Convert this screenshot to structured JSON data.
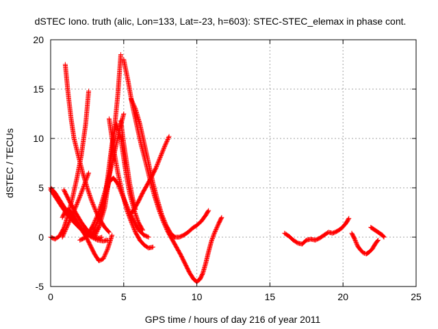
{
  "chart_data": {
    "type": "scatter",
    "title": "dSTEC Iono. truth (alic, Lon=133, Lat=-23, h=603): STEC-STEC_elemax in phase cont.",
    "xlabel": "GPS time / hours of day 216 of year 2011",
    "ylabel": "dSTEC  / TECUs",
    "xlim": [
      0,
      25
    ],
    "ylim": [
      -5,
      20
    ],
    "x_ticks": [
      0,
      5,
      10,
      15,
      20,
      25
    ],
    "y_ticks": [
      -5,
      0,
      5,
      10,
      15,
      20
    ],
    "x_tick_labels": [
      "0",
      "5",
      "10",
      "15",
      "20",
      "25"
    ],
    "y_tick_labels": [
      "-5",
      "0",
      "5",
      "10",
      "15",
      "20"
    ],
    "grid": true,
    "marker": "+",
    "color": "#ff0000",
    "series": [
      {
        "x": [
          0.0,
          0.3,
          0.6,
          0.9,
          1.2,
          1.5,
          1.8,
          2.1,
          2.4,
          2.7,
          3.0,
          3.3,
          3.5
        ],
        "y": [
          5.0,
          4.5,
          3.8,
          3.1,
          2.5,
          1.9,
          1.4,
          0.9,
          0.5,
          0.2,
          0.0,
          -0.1,
          0.0
        ]
      },
      {
        "x": [
          0.0,
          0.4,
          0.8,
          1.2,
          1.6,
          2.0,
          2.4,
          2.8,
          3.2,
          3.6,
          3.9
        ],
        "y": [
          4.8,
          3.9,
          3.0,
          2.2,
          1.5,
          0.9,
          0.4,
          0.0,
          -0.3,
          -0.4,
          -0.3
        ]
      },
      {
        "x": [
          0.0,
          0.3,
          0.6,
          0.9,
          1.2,
          1.5,
          1.8,
          2.1,
          2.4,
          2.6
        ],
        "y": [
          0.0,
          -0.2,
          0.1,
          0.9,
          2.3,
          4.0,
          6.0,
          8.3,
          11.5,
          14.8
        ]
      },
      {
        "x": [
          1.0,
          1.2,
          1.4,
          1.6,
          1.9,
          2.2,
          2.5,
          2.8,
          3.1,
          3.4,
          3.7,
          4.0
        ],
        "y": [
          17.5,
          14.5,
          12.0,
          10.0,
          8.2,
          6.5,
          5.0,
          3.7,
          2.6,
          1.7,
          1.0,
          0.5
        ]
      },
      {
        "x": [
          0.8,
          1.0,
          1.2,
          1.5,
          1.8,
          2.1,
          2.4,
          2.7,
          3.0,
          3.3,
          3.6,
          3.9,
          4.2
        ],
        "y": [
          2.0,
          2.6,
          2.8,
          2.4,
          1.6,
          0.8,
          0.1,
          -0.8,
          -1.7,
          -2.4,
          -2.2,
          -1.2,
          0.2
        ]
      },
      {
        "x": [
          0.9,
          1.3,
          1.7,
          2.1,
          2.5,
          2.9,
          3.3,
          3.7,
          4.0,
          4.3,
          4.6,
          4.8
        ],
        "y": [
          4.8,
          3.6,
          2.5,
          1.5,
          0.7,
          0.2,
          1.0,
          3.0,
          6.0,
          10.0,
          14.5,
          18.5
        ]
      },
      {
        "x": [
          0.8,
          1.1,
          1.4,
          1.7,
          2.0,
          2.3,
          2.6
        ],
        "y": [
          0.0,
          1.0,
          2.0,
          3.0,
          4.1,
          5.3,
          6.5
        ]
      },
      {
        "x": [
          2.0,
          2.3,
          2.6,
          2.9,
          3.2,
          3.5,
          3.8,
          4.1,
          4.4,
          4.7,
          5.0
        ],
        "y": [
          -0.3,
          -0.1,
          0.4,
          1.2,
          2.2,
          3.5,
          5.0,
          6.8,
          8.8,
          10.8,
          12.5
        ]
      },
      {
        "x": [
          2.8,
          3.1,
          3.4,
          3.7,
          4.0,
          4.3,
          4.6,
          4.9,
          5.2,
          5.5,
          5.8,
          6.1,
          6.4,
          6.7
        ],
        "y": [
          0.2,
          1.2,
          2.5,
          4.0,
          5.6,
          6.0,
          5.4,
          4.3,
          3.2,
          2.2,
          1.3,
          0.6,
          0.2,
          0.0
        ]
      },
      {
        "x": [
          3.0,
          3.3,
          3.6,
          3.9,
          4.2,
          4.5,
          4.8,
          5.1,
          5.4,
          5.7,
          6.0,
          6.3
        ],
        "y": [
          0.0,
          1.0,
          3.0,
          6.0,
          9.5,
          11.5,
          10.0,
          7.0,
          4.5,
          2.8,
          1.5,
          0.7
        ]
      },
      {
        "x": [
          4.0,
          4.3,
          4.6,
          4.9,
          5.2,
          5.5,
          5.8,
          6.1,
          6.4,
          6.7,
          7.0
        ],
        "y": [
          12.0,
          9.0,
          6.5,
          4.5,
          2.8,
          1.6,
          0.5,
          -0.3,
          -0.8,
          -1.1,
          -1.0
        ]
      },
      {
        "x": [
          4.8,
          5.0,
          5.2,
          5.4,
          5.6,
          5.8
        ],
        "y": [
          11.8,
          9.5,
          7.5,
          5.5,
          4.0,
          2.8
        ]
      },
      {
        "x": [
          5.4,
          5.7,
          6.0,
          6.3,
          6.6,
          6.9,
          7.2,
          7.5,
          7.8,
          8.1
        ],
        "y": [
          2.2,
          2.8,
          3.6,
          4.5,
          5.3,
          6.1,
          7.0,
          8.1,
          9.2,
          10.2
        ]
      },
      {
        "x": [
          5.0,
          5.3,
          5.6,
          5.9,
          6.2,
          6.5,
          6.8,
          7.1,
          7.4,
          7.7,
          8.0,
          8.3,
          8.6,
          8.9,
          9.2,
          9.5,
          9.8,
          10.0,
          10.2,
          10.4,
          10.6,
          10.8,
          11.0,
          11.2,
          11.5,
          11.7
        ],
        "y": [
          18.0,
          15.8,
          13.3,
          11.3,
          9.3,
          7.6,
          5.8,
          4.2,
          2.8,
          1.6,
          0.6,
          -0.2,
          -1.0,
          -1.8,
          -2.7,
          -3.6,
          -4.3,
          -4.5,
          -4.3,
          -3.7,
          -2.7,
          -1.5,
          -0.4,
          0.4,
          1.4,
          2.0
        ]
      },
      {
        "x": [
          5.5,
          5.8,
          6.1,
          6.4,
          6.7,
          7.0,
          7.3,
          7.6,
          7.9,
          8.2,
          8.5,
          8.8,
          9.1,
          9.4,
          9.7,
          10.0,
          10.3,
          10.6,
          10.8
        ],
        "y": [
          14.0,
          13.0,
          11.5,
          9.5,
          7.5,
          5.5,
          3.8,
          2.3,
          1.2,
          0.4,
          0.0,
          0.0,
          0.2,
          0.5,
          0.9,
          1.2,
          1.6,
          2.2,
          2.7
        ]
      },
      {
        "x": [
          16.0,
          16.3,
          16.6,
          16.9,
          17.2,
          17.5,
          17.8,
          18.1,
          18.4,
          18.7,
          19.0,
          19.3,
          19.6,
          19.9,
          20.2,
          20.4
        ],
        "y": [
          0.4,
          0.1,
          -0.3,
          -0.6,
          -0.7,
          -0.3,
          -0.2,
          -0.3,
          -0.1,
          0.2,
          0.5,
          0.4,
          0.6,
          0.9,
          1.4,
          1.9
        ]
      },
      {
        "x": [
          20.6,
          20.8,
          21.0,
          21.2,
          21.4,
          21.6,
          21.8,
          22.0,
          22.2,
          22.4
        ],
        "y": [
          0.4,
          -0.2,
          -0.9,
          -1.3,
          -1.6,
          -1.7,
          -1.5,
          -1.2,
          -0.7,
          -0.3
        ]
      },
      {
        "x": [
          21.9,
          22.1,
          22.3,
          22.5,
          22.7,
          22.8
        ],
        "y": [
          1.0,
          0.8,
          0.6,
          0.4,
          0.2,
          0.0
        ]
      }
    ]
  }
}
